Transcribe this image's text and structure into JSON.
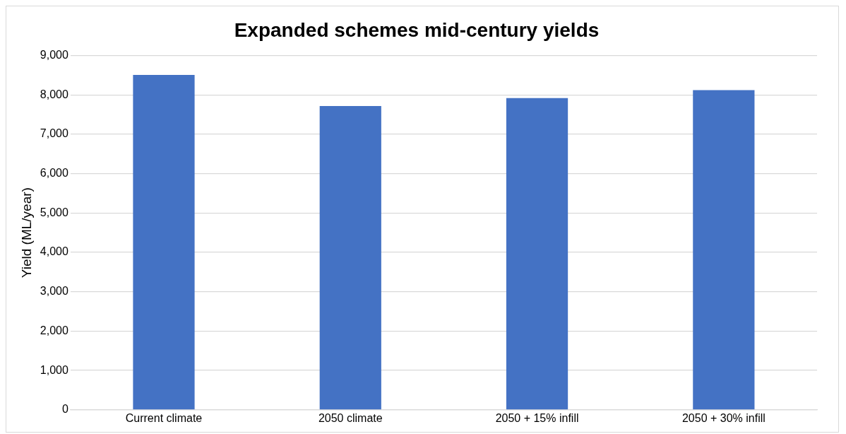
{
  "chart_data": {
    "type": "bar",
    "title": "Expanded schemes mid-century yields",
    "ylabel": "Yield (ML/year)",
    "categories": [
      "Current climate",
      "2050 climate",
      "2050 + 15% infill",
      "2050 + 30% infill"
    ],
    "values": [
      8510,
      7720,
      7920,
      8120
    ],
    "color": "#4472c4",
    "ylim": [
      0,
      9000
    ],
    "yticks": [
      {
        "value": 0,
        "label": "0"
      },
      {
        "value": 1000,
        "label": "1,000"
      },
      {
        "value": 2000,
        "label": "2,000"
      },
      {
        "value": 3000,
        "label": "3,000"
      },
      {
        "value": 4000,
        "label": "4,000"
      },
      {
        "value": 5000,
        "label": "5,000"
      },
      {
        "value": 6000,
        "label": "6,000"
      },
      {
        "value": 7000,
        "label": "7,000"
      },
      {
        "value": 8000,
        "label": "8,000"
      },
      {
        "value": 9000,
        "label": "9,000"
      }
    ],
    "grid": "y",
    "legend": false
  }
}
